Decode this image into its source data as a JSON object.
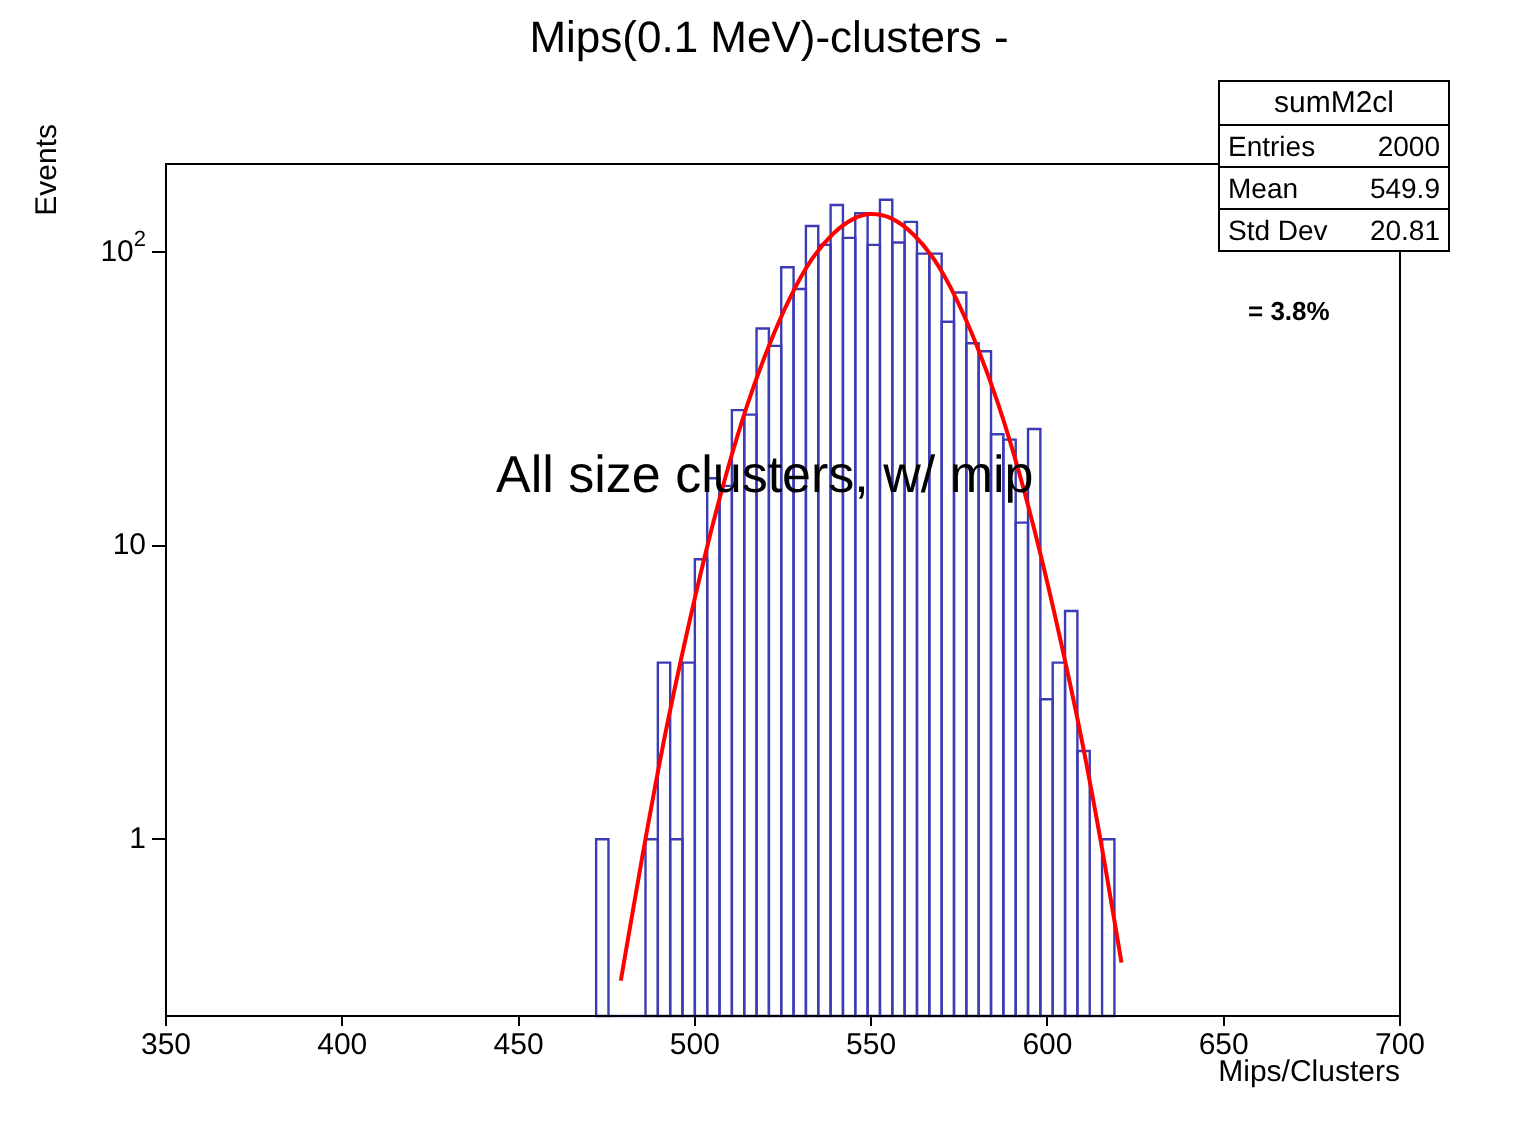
{
  "chart_data": {
    "type": "histogram",
    "title": "Mips(0.1 MeV)-clusters -",
    "xlabel": "Mips/Clusters",
    "ylabel": "Events",
    "bins": [
      472,
      475.5,
      479,
      482.5,
      486,
      489.5,
      493,
      496.5,
      500,
      503.5,
      507,
      510.5,
      514,
      517.5,
      521,
      524.5,
      528,
      531.5,
      535,
      538.5,
      542,
      545.5,
      549,
      552.5,
      556,
      559.5,
      563,
      566.5,
      570,
      573.5,
      577,
      580.5,
      584,
      587.5,
      591,
      594.5,
      598,
      601.5,
      605,
      608.5,
      612,
      615.5,
      619
    ],
    "values": [
      1,
      null,
      null,
      null,
      1,
      4,
      1,
      4,
      9,
      17,
      16,
      29,
      28,
      55,
      48,
      89,
      75,
      123,
      106,
      145,
      112,
      136,
      106,
      151,
      108,
      127,
      99,
      99,
      58,
      73,
      49,
      46,
      24,
      23,
      12,
      25,
      3,
      4,
      6,
      2,
      null,
      1
    ],
    "color": "#3c3cb4",
    "series": [
      {
        "type": "line",
        "color": "#ff0000",
        "x": [
          479,
          485,
          491,
          497,
          503,
          509,
          515,
          521,
          527,
          533,
          539,
          545,
          550,
          556,
          562,
          568,
          574,
          580,
          586,
          592,
          598,
          604,
          610,
          616,
          621
        ],
        "values": [
          0.33,
          0.86,
          2.1,
          4.6,
          9.4,
          17.7,
          30.5,
          48,
          70,
          94,
          115,
          130,
          135,
          130,
          115,
          94,
          70,
          48,
          30.5,
          17.7,
          9.4,
          4.6,
          2.1,
          0.86,
          0.38
        ]
      }
    ],
    "xlim": [
      350,
      700
    ],
    "xticks": [
      350,
      400,
      450,
      500,
      550,
      600,
      650,
      700
    ],
    "ylim": [
      0.25,
      200
    ],
    "yticks": [
      {
        "value": 1,
        "label": "1"
      },
      {
        "value": 10,
        "label": "10"
      },
      {
        "value": 100,
        "label": "10$^{2}$"
      }
    ],
    "log": "y",
    "grid": false,
    "legend": false,
    "annotations": [
      "sumM2cl",
      "Entries 2000",
      "Mean 549.9",
      "Std Dev 20.81",
      "= 3.8%",
      "All size clusters, w/ mip"
    ]
  }
}
